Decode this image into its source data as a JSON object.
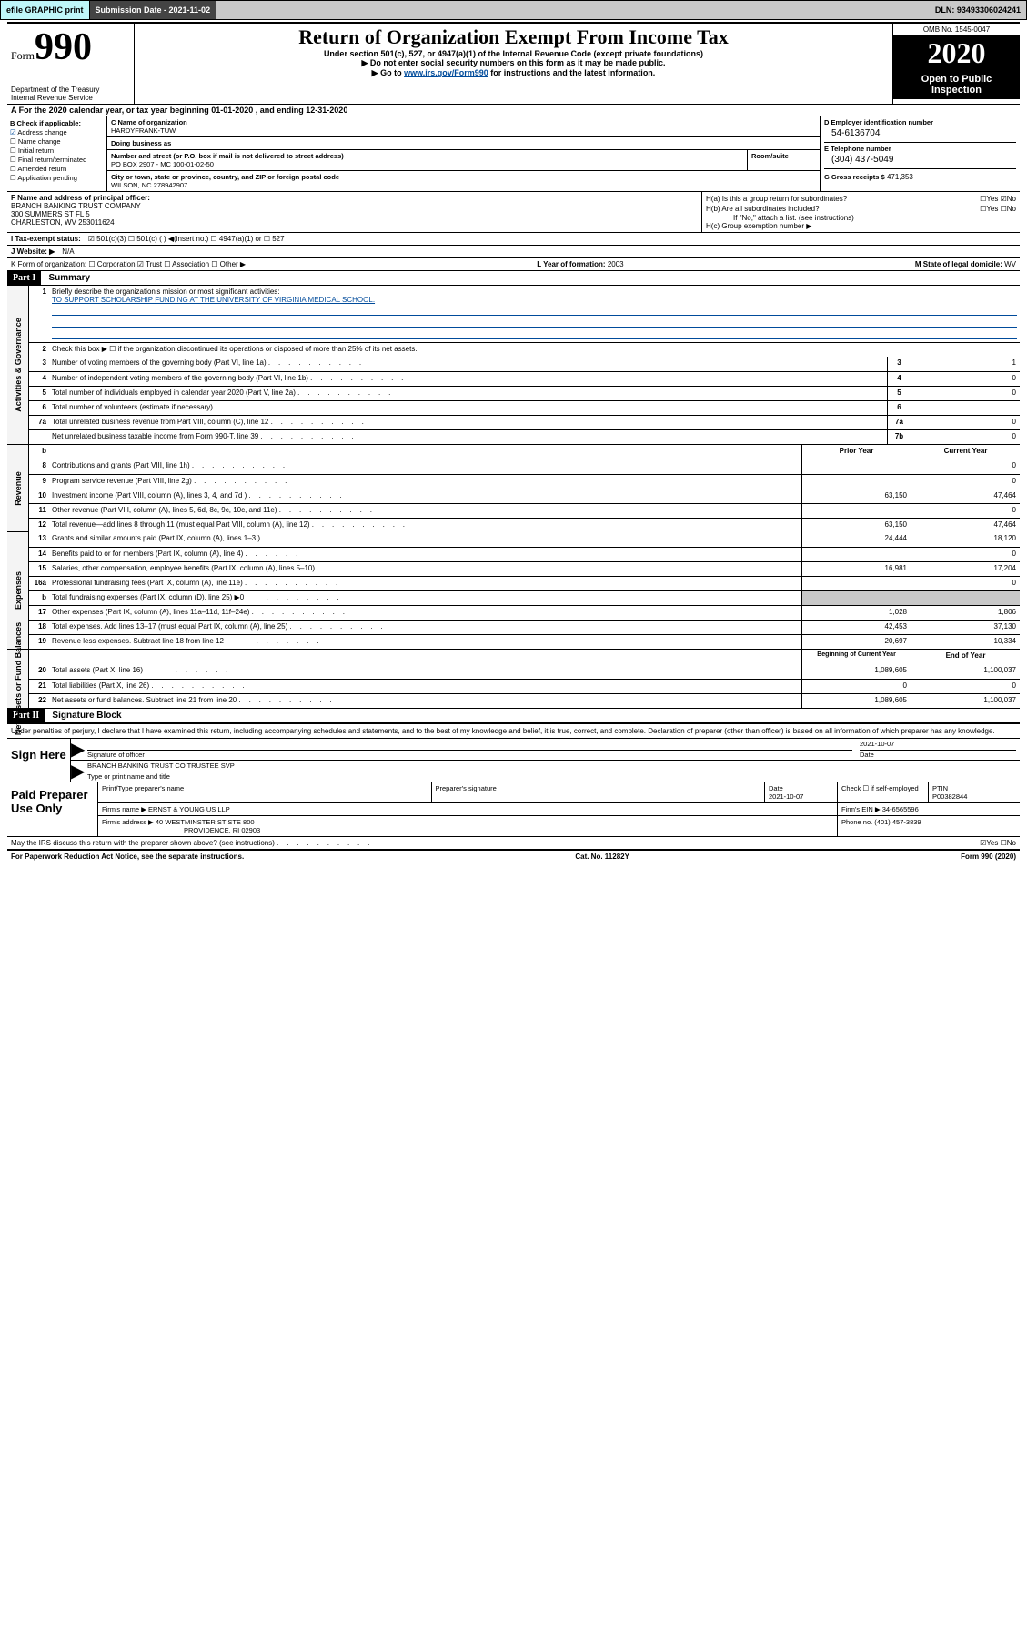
{
  "topbar": {
    "efile": "efile GRAPHIC print",
    "submission_label": "Submission Date - 2021-11-02",
    "dln": "DLN: 93493306024241"
  },
  "header": {
    "form_word": "Form",
    "form_num": "990",
    "dept": "Department of the Treasury\nInternal Revenue Service",
    "title": "Return of Organization Exempt From Income Tax",
    "subtitle": "Under section 501(c), 527, or 4947(a)(1) of the Internal Revenue Code (except private foundations)",
    "note1": "Do not enter social security numbers on this form as it may be made public.",
    "note2_pre": "Go to ",
    "note2_link": "www.irs.gov/Form990",
    "note2_post": " for instructions and the latest information.",
    "omb": "OMB No. 1545-0047",
    "year": "2020",
    "open": "Open to Public Inspection"
  },
  "rowA": "A For the 2020 calendar year, or tax year beginning 01-01-2020    , and ending 12-31-2020",
  "boxB": {
    "hdr": "B Check if applicable:",
    "items": [
      {
        "t": "Address change",
        "c": true
      },
      {
        "t": "Name change",
        "c": false
      },
      {
        "t": "Initial return",
        "c": false
      },
      {
        "t": "Final return/terminated",
        "c": false
      },
      {
        "t": "Amended return",
        "c": false
      },
      {
        "t": "Application pending",
        "c": false
      }
    ]
  },
  "boxC": {
    "name_lbl": "C Name of organization",
    "name": "HARDYFRANK-TUW",
    "dba_lbl": "Doing business as",
    "dba": "",
    "addr_lbl": "Number and street (or P.O. box if mail is not delivered to street address)",
    "room_lbl": "Room/suite",
    "addr": "PO BOX 2907 - MC 100-01-02-50",
    "city_lbl": "City or town, state or province, country, and ZIP or foreign postal code",
    "city": "WILSON, NC  278942907"
  },
  "boxD": {
    "lbl": "D Employer identification number",
    "val": "54-6136704"
  },
  "boxE": {
    "lbl": "E Telephone number",
    "val": "(304) 437-5049"
  },
  "boxG": {
    "lbl": "G Gross receipts $",
    "val": "471,353"
  },
  "boxF": {
    "lbl": "F  Name and address of principal officer:",
    "l1": "BRANCH BANKING TRUST COMPANY",
    "l2": "300 SUMMERS ST FL 5",
    "l3": "CHARLESTON, WV  253011624"
  },
  "boxH": {
    "a": "H(a)  Is this a group return for subordinates?",
    "a_ans": "☐Yes  ☑No",
    "b": "H(b)  Are all subordinates included?",
    "b_ans": "☐Yes  ☐No",
    "note": "If \"No,\" attach a list. (see instructions)",
    "c": "H(c)  Group exemption number ▶"
  },
  "rowI": {
    "lbl": "I   Tax-exempt status:",
    "opts": "☑ 501(c)(3)    ☐ 501(c) (  ) ◀(insert no.)    ☐ 4947(a)(1) or   ☐ 527"
  },
  "rowJ": {
    "lbl": "J   Website: ▶",
    "val": "N/A"
  },
  "rowK": {
    "left": "K Form of organization:   ☐ Corporation   ☑ Trust   ☐ Association   ☐ Other ▶",
    "L_lbl": "L Year of formation:",
    "L_val": "2003",
    "M_lbl": "M State of legal domicile:",
    "M_val": "WV"
  },
  "part1": {
    "hdr": "Part I",
    "title": "Summary"
  },
  "sec1": {
    "tab": "Activities & Governance",
    "q1": "Briefly describe the organization's mission or most significant activities:",
    "a1": "TO SUPPORT SCHOLARSHIP FUNDING AT THE UNIVERSITY OF VIRGINIA MEDICAL SCHOOL.",
    "q2": "Check this box ▶ ☐  if the organization discontinued its operations or disposed of more than 25% of its net assets.",
    "lines": [
      {
        "n": "3",
        "t": "Number of voting members of the governing body (Part VI, line 1a)",
        "k": "3",
        "v": "1"
      },
      {
        "n": "4",
        "t": "Number of independent voting members of the governing body (Part VI, line 1b)",
        "k": "4",
        "v": "0"
      },
      {
        "n": "5",
        "t": "Total number of individuals employed in calendar year 2020 (Part V, line 2a)",
        "k": "5",
        "v": "0"
      },
      {
        "n": "6",
        "t": "Total number of volunteers (estimate if necessary)",
        "k": "6",
        "v": ""
      },
      {
        "n": "7a",
        "t": "Total unrelated business revenue from Part VIII, column (C), line 12",
        "k": "7a",
        "v": "0"
      },
      {
        "n": "",
        "t": "Net unrelated business taxable income from Form 990-T, line 39",
        "k": "7b",
        "v": "0"
      }
    ]
  },
  "colhdrs": {
    "prior": "Prior Year",
    "current": "Current Year"
  },
  "sec_rev": {
    "tab": "Revenue",
    "lines": [
      {
        "n": "8",
        "t": "Contributions and grants (Part VIII, line 1h)",
        "p": "",
        "c": "0"
      },
      {
        "n": "9",
        "t": "Program service revenue (Part VIII, line 2g)",
        "p": "",
        "c": "0"
      },
      {
        "n": "10",
        "t": "Investment income (Part VIII, column (A), lines 3, 4, and 7d )",
        "p": "63,150",
        "c": "47,464"
      },
      {
        "n": "11",
        "t": "Other revenue (Part VIII, column (A), lines 5, 6d, 8c, 9c, 10c, and 11e)",
        "p": "",
        "c": "0"
      },
      {
        "n": "12",
        "t": "Total revenue—add lines 8 through 11 (must equal Part VIII, column (A), line 12)",
        "p": "63,150",
        "c": "47,464"
      }
    ]
  },
  "sec_exp": {
    "tab": "Expenses",
    "lines": [
      {
        "n": "13",
        "t": "Grants and similar amounts paid (Part IX, column (A), lines 1–3 )",
        "p": "24,444",
        "c": "18,120"
      },
      {
        "n": "14",
        "t": "Benefits paid to or for members (Part IX, column (A), line 4)",
        "p": "",
        "c": "0"
      },
      {
        "n": "15",
        "t": "Salaries, other compensation, employee benefits (Part IX, column (A), lines 5–10)",
        "p": "16,981",
        "c": "17,204"
      },
      {
        "n": "16a",
        "t": "Professional fundraising fees (Part IX, column (A), line 11e)",
        "p": "",
        "c": "0"
      },
      {
        "n": "b",
        "t": "Total fundraising expenses (Part IX, column (D), line 25) ▶0",
        "p": "SHADE",
        "c": "SHADE"
      },
      {
        "n": "17",
        "t": "Other expenses (Part IX, column (A), lines 11a–11d, 11f–24e)",
        "p": "1,028",
        "c": "1,806"
      },
      {
        "n": "18",
        "t": "Total expenses. Add lines 13–17 (must equal Part IX, column (A), line 25)",
        "p": "42,453",
        "c": "37,130"
      },
      {
        "n": "19",
        "t": "Revenue less expenses. Subtract line 18 from line 12",
        "p": "20,697",
        "c": "10,334"
      }
    ]
  },
  "colhdrs2": {
    "prior": "Beginning of Current Year",
    "current": "End of Year"
  },
  "sec_net": {
    "tab": "Net Assets or Fund Balances",
    "lines": [
      {
        "n": "20",
        "t": "Total assets (Part X, line 16)",
        "p": "1,089,605",
        "c": "1,100,037"
      },
      {
        "n": "21",
        "t": "Total liabilities (Part X, line 26)",
        "p": "0",
        "c": "0"
      },
      {
        "n": "22",
        "t": "Net assets or fund balances. Subtract line 21 from line 20",
        "p": "1,089,605",
        "c": "1,100,037"
      }
    ]
  },
  "part2": {
    "hdr": "Part II",
    "title": "Signature Block"
  },
  "sig_intro": "Under penalties of perjury, I declare that I have examined this return, including accompanying schedules and statements, and to the best of my knowledge and belief, it is true, correct, and complete. Declaration of preparer (other than officer) is based on all information of which preparer has any knowledge.",
  "sign": {
    "left": "Sign Here",
    "officer_lbl": "Signature of officer",
    "date": "2021-10-07",
    "date_lbl": "Date",
    "name": "BRANCH BANKING TRUST CO TRUSTEE  SVP",
    "name_lbl": "Type or print name and title"
  },
  "paid": {
    "left": "Paid Preparer Use Only",
    "r1": {
      "c1_lbl": "Print/Type preparer's name",
      "c1": "",
      "c2_lbl": "Preparer's signature",
      "c2": "",
      "c3_lbl": "Date",
      "c3": "2021-10-07",
      "c4_lbl": "Check ☐ if self-employed",
      "c5_lbl": "PTIN",
      "c5": "P00382844"
    },
    "r2": {
      "lbl": "Firm's name      ▶",
      "val": "ERNST & YOUNG US LLP",
      "ein_lbl": "Firm's EIN ▶",
      "ein": "34-6565596"
    },
    "r3": {
      "lbl": "Firm's address ▶",
      "val1": "40 WESTMINSTER ST STE 800",
      "val2": "PROVIDENCE, RI  02903",
      "ph_lbl": "Phone no.",
      "ph": "(401) 457-3839"
    }
  },
  "footer_q": {
    "q": "May the IRS discuss this return with the preparer shown above? (see instructions)",
    "a": "☑Yes   ☐No"
  },
  "footer": {
    "left": "For Paperwork Reduction Act Notice, see the separate instructions.",
    "mid": "Cat. No. 11282Y",
    "right": "Form 990 (2020)"
  }
}
